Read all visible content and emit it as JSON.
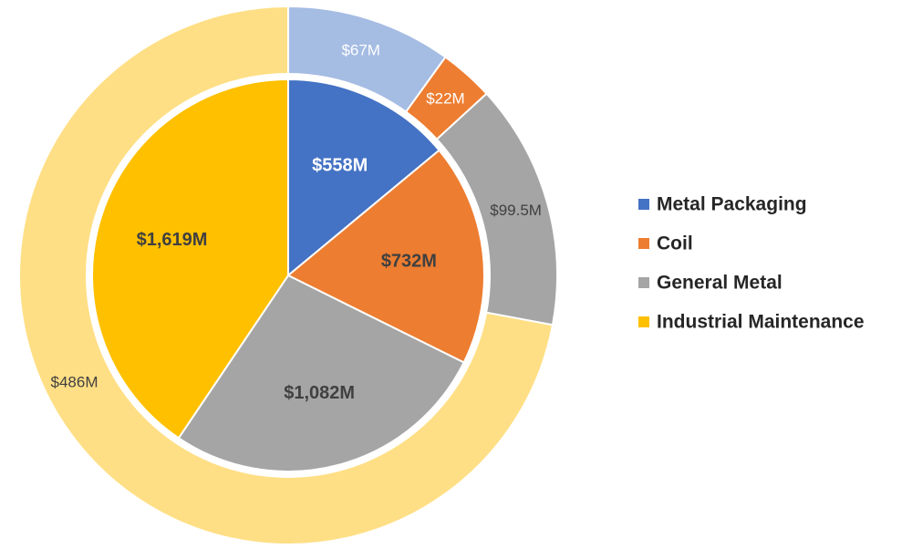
{
  "chart_data": {
    "type": "pie",
    "variant": "nested-donut",
    "legend_position": "right",
    "inner_ring": [
      {
        "name": "Metal Packaging",
        "value": 558,
        "label": "$558M",
        "color": "#4472C4",
        "label_color": "#FFFFFF"
      },
      {
        "name": "Coil",
        "value": 732,
        "label": "$732M",
        "color": "#ED7D31",
        "label_color": "#404040"
      },
      {
        "name": "General Metal",
        "value": 1082,
        "label": "$1,082M",
        "color": "#A5A5A5",
        "label_color": "#404040"
      },
      {
        "name": "Industrial Maintenance",
        "value": 1619,
        "label": "$1,619M",
        "color": "#FFC000",
        "label_color": "#404040"
      }
    ],
    "outer_ring": [
      {
        "name": "Metal Packaging",
        "value": 67,
        "label": "$67M",
        "color": "#A5BCE3",
        "label_color": "#FFFFFF"
      },
      {
        "name": "Coil",
        "value": 22,
        "label": "$22M",
        "color": "#ED7D31",
        "label_color": "#FFFFFF"
      },
      {
        "name": "General Metal",
        "value": 99.5,
        "label": "$99.5M",
        "color": "#A5A5A5",
        "label_color": "#404040"
      },
      {
        "name": "Industrial Maintenance",
        "value": 486,
        "label": "$486M",
        "color": "#FFDF85",
        "label_color": "#404040"
      }
    ],
    "legend": [
      {
        "name": "Metal Packaging",
        "color": "#4472C4"
      },
      {
        "name": "Coil",
        "color": "#ED7D31"
      },
      {
        "name": "General Metal",
        "color": "#A5A5A5"
      },
      {
        "name": "Industrial Maintenance",
        "color": "#FFC000"
      }
    ]
  }
}
